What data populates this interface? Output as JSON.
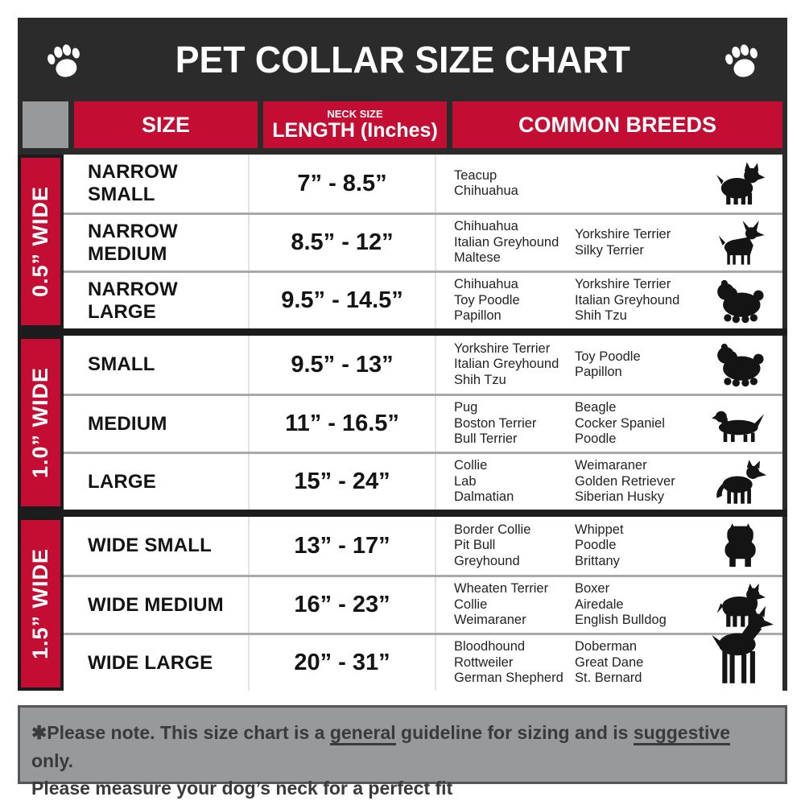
{
  "colors": {
    "accent_red": "#C40D32",
    "header_bg": "#2B2B2B",
    "gray_band": "#97999B",
    "divider_black": "#1C1C1C"
  },
  "header": {
    "title": "PET COLLAR SIZE CHART",
    "paw_icon": "paw-icon"
  },
  "columns": {
    "size": "SIZE",
    "neck_label": "NECK SIZE",
    "length_label": "LENGTH (Inches)",
    "breeds": "COMMON BREEDS"
  },
  "table": {
    "groups": [
      {
        "width_label": "0.5” WIDE"
      },
      {
        "width_label": "1.0” WIDE"
      },
      {
        "width_label": "1.5” WIDE"
      }
    ],
    "rows": [
      {
        "size": "NARROW SMALL",
        "length": "7” - 8.5”",
        "breeds_col1": "Teacup\nChihuahua",
        "breeds_col2": "",
        "icon": "yorkie-icon"
      },
      {
        "size": "NARROW MEDIUM",
        "length": "8.5” - 12”",
        "breeds_col1": "Chihuahua\nItalian Greyhound\nMaltese",
        "breeds_col2": "Yorkshire Terrier\nSilky Terrier",
        "icon": "chihuahua-icon"
      },
      {
        "size": "NARROW LARGE",
        "length": "9.5” - 14.5”",
        "breeds_col1": "Chihuahua\nToy Poodle\nPapillon",
        "breeds_col2": "Yorkshire Terrier\nItalian Greyhound\nShih Tzu",
        "icon": "shih-tzu-icon"
      },
      {
        "size": "SMALL",
        "length": "9.5” - 13”",
        "breeds_col1": "Yorkshire Terrier\nItalian Greyhound\nShih Tzu",
        "breeds_col2": "Toy Poodle\nPapillon",
        "icon": "shih-tzu-icon"
      },
      {
        "size": "MEDIUM",
        "length": "11” - 16.5”",
        "breeds_col1": "Pug\nBoston Terrier\nBull Terrier",
        "breeds_col2": "Beagle\nCocker Spaniel\nPoodle",
        "icon": "dachshund-icon"
      },
      {
        "size": "LARGE",
        "length": "15” - 24”",
        "breeds_col1": "Collie\nLab\nDalmatian",
        "breeds_col2": "Weimaraner\nGolden Retriever\nSiberian Husky",
        "icon": "shepherd-icon"
      },
      {
        "size": "WIDE SMALL",
        "length": "13” - 17”",
        "breeds_col1": "Border Collie\nPit Bull\nGreyhound",
        "breeds_col2": "Whippet\nPoodle\nBrittany",
        "icon": "bulldog-icon"
      },
      {
        "size": "WIDE MEDIUM",
        "length": "16” - 23”",
        "breeds_col1": "Wheaten Terrier\nCollie\nWeimaraner",
        "breeds_col2": "Boxer\nAiredale\nEnglish Bulldog",
        "icon": "pitbull-icon"
      },
      {
        "size": "WIDE LARGE",
        "length": "20” - 31”",
        "breeds_col1": "Bloodhound\nRottweiler\nGerman Shepherd",
        "breeds_col2": "Doberman\nGreat Dane\nSt. Bernard",
        "icon": "doberman-icon"
      }
    ]
  },
  "note": {
    "seg1": "✱Please note. This size chart is a ",
    "seg2": "general",
    "seg3": " guideline for sizing and is ",
    "seg4": "suggestive",
    "seg5": " only.",
    "line2": "Please measure your dog’s neck for a perfect fit"
  }
}
